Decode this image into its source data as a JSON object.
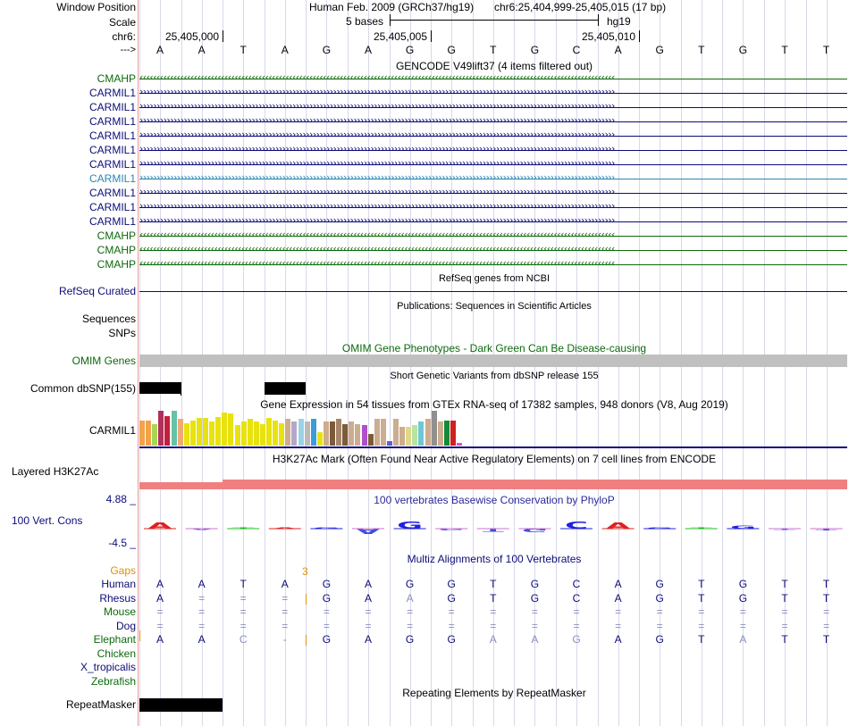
{
  "header": {
    "window_position_label": "Window Position",
    "scale_label": "Scale",
    "chrom_label": "chr6:",
    "strand_label": "--->",
    "assembly": "Human Feb. 2009 (GRCh37/hg19)",
    "position": "chr6:25,404,999-25,405,015 (17 bp)",
    "scale_text": "5 bases",
    "db": "hg19",
    "ticks": [
      "25,405,000",
      "25,405,005",
      "25,405,010"
    ]
  },
  "sequence": [
    "A",
    "A",
    "T",
    "A",
    "G",
    "A",
    "G",
    "G",
    "T",
    "G",
    "C",
    "A",
    "G",
    "T",
    "G",
    "T",
    "T"
  ],
  "gencode": {
    "title": "GENCODE V49lift37 (4 items filtered out)",
    "genes": [
      {
        "name": "CMAHP",
        "color": "#0c6a0c",
        "dir": "left"
      },
      {
        "name": "CARMIL1",
        "color": "#0c0c78",
        "dir": "right"
      },
      {
        "name": "CARMIL1",
        "color": "#0c0c78",
        "dir": "right"
      },
      {
        "name": "CARMIL1",
        "color": "#0c0c78",
        "dir": "right"
      },
      {
        "name": "CARMIL1",
        "color": "#0c0c78",
        "dir": "right"
      },
      {
        "name": "CARMIL1",
        "color": "#0c0c78",
        "dir": "right"
      },
      {
        "name": "CARMIL1",
        "color": "#0c0c78",
        "dir": "right"
      },
      {
        "name": "CARMIL1",
        "color": "#2a86b3",
        "dir": "right"
      },
      {
        "name": "CARMIL1",
        "color": "#0c0c78",
        "dir": "right"
      },
      {
        "name": "CARMIL1",
        "color": "#0c0c78",
        "dir": "right"
      },
      {
        "name": "CARMIL1",
        "color": "#0c0c78",
        "dir": "right"
      },
      {
        "name": "CMAHP",
        "color": "#0c6a0c",
        "dir": "left"
      },
      {
        "name": "CMAHP",
        "color": "#0c6a0c",
        "dir": "left"
      },
      {
        "name": "CMAHP",
        "color": "#0c6a0c",
        "dir": "left"
      }
    ]
  },
  "refseq": {
    "title": "RefSeq genes from NCBI",
    "label": "RefSeq Curated"
  },
  "publications": {
    "title": "Publications: Sequences in Scientific Articles",
    "label": "Sequences"
  },
  "snps_label": "SNPs",
  "omim": {
    "title": "OMIM Gene Phenotypes - Dark Green Can Be Disease-causing",
    "label": "OMIM Genes"
  },
  "dbsnp": {
    "title": "Short Genetic Variants from dbSNP release 155",
    "label": "Common dbSNP(155)"
  },
  "gtex": {
    "title": "Gene Expression in 54 tissues from GTEx RNA-seq of 17382 samples, 948 donors (V8, Aug 2019)",
    "label": "CARMIL1",
    "bars": [
      {
        "v": 0.73,
        "c": "#f2a34a"
      },
      {
        "v": 0.73,
        "c": "#f2a34a"
      },
      {
        "v": 0.62,
        "c": "#a6d854"
      },
      {
        "v": 1.0,
        "c": "#b0305a"
      },
      {
        "v": 0.85,
        "c": "#c21f3a"
      },
      {
        "v": 1.0,
        "c": "#66c2a5"
      },
      {
        "v": 0.76,
        "c": "#f0aa7a"
      },
      {
        "v": 0.65,
        "c": "#e8e210"
      },
      {
        "v": 0.73,
        "c": "#e8e210"
      },
      {
        "v": 0.8,
        "c": "#e8e210"
      },
      {
        "v": 0.8,
        "c": "#e8e210"
      },
      {
        "v": 0.7,
        "c": "#e8e210"
      },
      {
        "v": 0.83,
        "c": "#e8e210"
      },
      {
        "v": 0.95,
        "c": "#e8e210"
      },
      {
        "v": 0.93,
        "c": "#e8e210"
      },
      {
        "v": 0.6,
        "c": "#e8e210"
      },
      {
        "v": 0.7,
        "c": "#e8e210"
      },
      {
        "v": 0.76,
        "c": "#e8e210"
      },
      {
        "v": 0.7,
        "c": "#e8e210"
      },
      {
        "v": 0.62,
        "c": "#e8e210"
      },
      {
        "v": 0.8,
        "c": "#e8e210"
      },
      {
        "v": 0.73,
        "c": "#e8e210"
      },
      {
        "v": 0.65,
        "c": "#e8e210"
      },
      {
        "v": 0.76,
        "c": "#ccad8f"
      },
      {
        "v": 0.7,
        "c": "#b4a7c9"
      },
      {
        "v": 0.76,
        "c": "#9ad3e6"
      },
      {
        "v": 0.7,
        "c": "#bbbbbb"
      },
      {
        "v": 0.76,
        "c": "#3d9bd6"
      },
      {
        "v": 0.38,
        "c": "#e8e210"
      },
      {
        "v": 0.7,
        "c": "#ccad8f"
      },
      {
        "v": 0.7,
        "c": "#7c5b3a"
      },
      {
        "v": 0.76,
        "c": "#a6856a"
      },
      {
        "v": 0.62,
        "c": "#7c5b3a"
      },
      {
        "v": 0.7,
        "c": "#ccad8f"
      },
      {
        "v": 0.62,
        "c": "#ccad8f"
      },
      {
        "v": 0.6,
        "c": "#b050c8"
      },
      {
        "v": 0.33,
        "c": "#7c5b3a"
      },
      {
        "v": 0.76,
        "c": "#ccad8f"
      },
      {
        "v": 0.76,
        "c": "#ccad8f"
      },
      {
        "v": 0.12,
        "c": "#6060c8"
      },
      {
        "v": 0.76,
        "c": "#ccad8f"
      },
      {
        "v": 0.54,
        "c": "#ccad8f"
      },
      {
        "v": 0.54,
        "c": "#dfd88c"
      },
      {
        "v": 0.6,
        "c": "#b8e4a0"
      },
      {
        "v": 0.7,
        "c": "#6ec8d4"
      },
      {
        "v": 0.76,
        "c": "#ccad8f"
      },
      {
        "v": 1.0,
        "c": "#909090"
      },
      {
        "v": 0.7,
        "c": "#ccad8f"
      },
      {
        "v": 0.73,
        "c": "#138a3a"
      },
      {
        "v": 0.73,
        "c": "#d02020"
      },
      {
        "v": 0.08,
        "c": "#e04ad8"
      }
    ]
  },
  "h3k27ac": {
    "title": "H3K27Ac Mark (Often Found Near Active Regulatory Elements) on 7 cell lines from ENCODE",
    "label": "Layered H3K27Ac"
  },
  "conservation": {
    "title": "100 vertebrates Basewise Conservation by PhyloP",
    "label": "100 Vert. Cons",
    "ymax": "4.88 _",
    "ymin": "-4.5 _",
    "scores": [
      2.2,
      -0.3,
      0.2,
      0.1,
      0.05,
      -1.8,
      2.4,
      -0.6,
      -1.0,
      -1.2,
      2.3,
      2.1,
      0,
      0.3,
      1.0,
      -0.3,
      -0.5
    ]
  },
  "multiz": {
    "title": "Multiz Alignments of 100 Vertebrates",
    "gaps_label": "Gaps",
    "gap_count": "3",
    "species": [
      {
        "name": "Human",
        "color": "#0c0c78",
        "bases": [
          "A",
          "A",
          "T",
          "A",
          "G",
          "A",
          "G",
          "G",
          "T",
          "G",
          "C",
          "A",
          "G",
          "T",
          "G",
          "T",
          "T"
        ]
      },
      {
        "name": "Rhesus",
        "color": "#0c0c78",
        "bases": [
          "A",
          "=",
          "=",
          "=",
          "G",
          "A",
          "A",
          "G",
          "T",
          "G",
          "C",
          "A",
          "G",
          "T",
          "G",
          "T",
          "T"
        ]
      },
      {
        "name": "Mouse",
        "color": "#0c6a0c",
        "bases": [
          "=",
          "=",
          "=",
          "=",
          "=",
          "=",
          "=",
          "=",
          "=",
          "=",
          "=",
          "=",
          "=",
          "=",
          "=",
          "=",
          "="
        ]
      },
      {
        "name": "Dog",
        "color": "#0c0c78",
        "bases": [
          "=",
          "=",
          "=",
          "=",
          "=",
          "=",
          "=",
          "=",
          "=",
          "=",
          "=",
          "=",
          "=",
          "=",
          "=",
          "=",
          "="
        ]
      },
      {
        "name": "Elephant",
        "color": "#0c6a0c",
        "bases": [
          "A",
          "A",
          "C",
          "-",
          "G",
          "A",
          "G",
          "G",
          "A",
          "A",
          "G",
          "A",
          "G",
          "T",
          "A",
          "T",
          "T"
        ]
      },
      {
        "name": "Chicken",
        "color": "#0c6a0c",
        "bases": []
      },
      {
        "name": "X_tropicalis",
        "color": "#0c0c78",
        "bases": []
      },
      {
        "name": "Zebrafish",
        "color": "#0c6a0c",
        "bases": []
      }
    ]
  },
  "repeatmasker": {
    "title": "Repeating Elements by RepeatMasker",
    "label": "RepeatMasker"
  },
  "colors": {
    "navy": "#0c0c78",
    "green": "#0c6a0c",
    "grid": "#d8d8ea",
    "separator": "#e39a9a",
    "omim_gray": "#c0c0c0",
    "h3k27ac": "#f08080",
    "gaps_orange": "#e0900a"
  }
}
